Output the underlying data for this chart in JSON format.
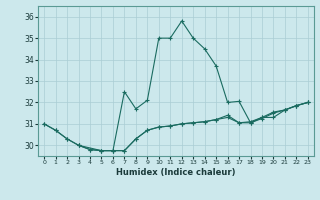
{
  "xlabel": "Humidex (Indice chaleur)",
  "background_color": "#cce8ec",
  "line_color": "#1a6b60",
  "grid_color": "#aacdd4",
  "xlim": [
    -0.5,
    23.5
  ],
  "ylim": [
    29.5,
    36.5
  ],
  "yticks": [
    30,
    31,
    32,
    33,
    34,
    35,
    36
  ],
  "xticks": [
    0,
    1,
    2,
    3,
    4,
    5,
    6,
    7,
    8,
    9,
    10,
    11,
    12,
    13,
    14,
    15,
    16,
    17,
    18,
    19,
    20,
    21,
    22,
    23
  ],
  "curve1_x": [
    0,
    1,
    2,
    3,
    4,
    5,
    6,
    7,
    8,
    9,
    10,
    11,
    12,
    13,
    14,
    15,
    16,
    17,
    18,
    19,
    20,
    21,
    22,
    23
  ],
  "curve1_y": [
    31.0,
    30.7,
    30.3,
    30.0,
    29.8,
    29.75,
    29.75,
    29.75,
    30.3,
    30.7,
    30.85,
    30.9,
    31.0,
    31.05,
    31.1,
    31.2,
    31.3,
    31.05,
    31.05,
    31.25,
    31.5,
    31.65,
    31.85,
    32.0
  ],
  "curve2_x": [
    0,
    1,
    2,
    3,
    5,
    6,
    7,
    8,
    9,
    10,
    11,
    12,
    13,
    14,
    15,
    16,
    17,
    18,
    19,
    20,
    21,
    22,
    23
  ],
  "curve2_y": [
    31.0,
    30.7,
    30.3,
    30.0,
    29.75,
    29.75,
    32.5,
    31.7,
    32.1,
    35.0,
    35.0,
    35.8,
    35.0,
    34.5,
    33.7,
    32.0,
    32.05,
    31.05,
    31.3,
    31.3,
    31.65,
    31.85,
    32.0
  ],
  "curve3_x": [
    3,
    4,
    5,
    6,
    7,
    8,
    9,
    10,
    11,
    12,
    13,
    14,
    15,
    16,
    17,
    18,
    19,
    20,
    21,
    22,
    23
  ],
  "curve3_y": [
    30.0,
    29.8,
    29.75,
    29.75,
    29.75,
    30.3,
    30.7,
    30.85,
    30.9,
    31.0,
    31.05,
    31.1,
    31.2,
    31.4,
    31.05,
    31.1,
    31.3,
    31.55,
    31.65,
    31.85,
    32.0
  ]
}
